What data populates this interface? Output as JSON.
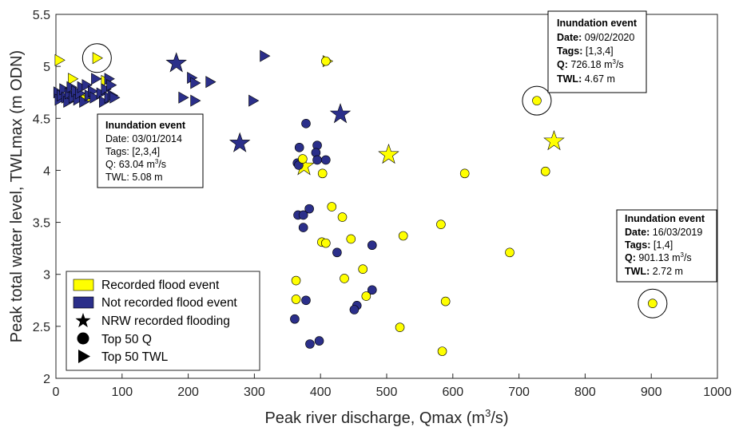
{
  "chart_data": {
    "type": "scatter",
    "xlabel_main": "Peak river discharge, Qmax (m",
    "xlabel_sup": "3",
    "xlabel_end": "/s)",
    "ylabel": "Peak total water level, TWLmax (m ODN)",
    "xlim": [
      0,
      1000
    ],
    "ylim": [
      2,
      5.5
    ],
    "x_ticks": [
      0,
      100,
      200,
      300,
      400,
      500,
      600,
      700,
      800,
      900,
      1000
    ],
    "y_ticks": [
      2,
      2.5,
      3,
      3.5,
      4,
      4.5,
      5,
      5.5
    ],
    "colors": {
      "recorded": "#ffff00",
      "not_recorded": "#2b2f8a",
      "edge": "#000000"
    },
    "legend": {
      "position": "bottom-left",
      "items": [
        {
          "label": "Recorded flood event",
          "marker": "swatch",
          "color": "#ffff00"
        },
        {
          "label": "Not recorded flood event",
          "marker": "swatch",
          "color": "#2b2f8a"
        },
        {
          "label": "NRW recorded flooding",
          "marker": "star",
          "color": "#000000"
        },
        {
          "label": "Top 50 Q",
          "marker": "circle",
          "color": "#000000"
        },
        {
          "label": "Top 50 TWL",
          "marker": "triangle",
          "color": "#000000"
        }
      ]
    },
    "points": [
      {
        "x": 5,
        "y": 5.06,
        "marker": "triangle",
        "color": "recorded"
      },
      {
        "x": 62,
        "y": 5.08,
        "marker": "triangle",
        "color": "recorded"
      },
      {
        "x": 25,
        "y": 4.88,
        "marker": "triangle",
        "color": "recorded"
      },
      {
        "x": 40,
        "y": 4.72,
        "marker": "triangle",
        "color": "recorded"
      },
      {
        "x": 75,
        "y": 4.86,
        "marker": "triangle",
        "color": "recorded"
      },
      {
        "x": 45,
        "y": 4.68,
        "marker": "triangle",
        "color": "recorded"
      },
      {
        "x": 3,
        "y": 4.75,
        "marker": "triangle",
        "color": "not_recorded"
      },
      {
        "x": 5,
        "y": 4.68,
        "marker": "triangle",
        "color": "not_recorded"
      },
      {
        "x": 8,
        "y": 4.72,
        "marker": "triangle",
        "color": "not_recorded"
      },
      {
        "x": 12,
        "y": 4.78,
        "marker": "triangle",
        "color": "not_recorded"
      },
      {
        "x": 15,
        "y": 4.7,
        "marker": "triangle",
        "color": "not_recorded"
      },
      {
        "x": 18,
        "y": 4.66,
        "marker": "triangle",
        "color": "not_recorded"
      },
      {
        "x": 20,
        "y": 4.74,
        "marker": "triangle",
        "color": "not_recorded"
      },
      {
        "x": 23,
        "y": 4.8,
        "marker": "triangle",
        "color": "not_recorded"
      },
      {
        "x": 26,
        "y": 4.7,
        "marker": "triangle",
        "color": "not_recorded"
      },
      {
        "x": 30,
        "y": 4.76,
        "marker": "triangle",
        "color": "not_recorded"
      },
      {
        "x": 33,
        "y": 4.68,
        "marker": "triangle",
        "color": "not_recorded"
      },
      {
        "x": 36,
        "y": 4.74,
        "marker": "triangle",
        "color": "not_recorded"
      },
      {
        "x": 39,
        "y": 4.8,
        "marker": "triangle",
        "color": "not_recorded"
      },
      {
        "x": 42,
        "y": 4.66,
        "marker": "triangle",
        "color": "not_recorded"
      },
      {
        "x": 46,
        "y": 4.82,
        "marker": "triangle",
        "color": "not_recorded"
      },
      {
        "x": 50,
        "y": 4.72,
        "marker": "triangle",
        "color": "not_recorded"
      },
      {
        "x": 55,
        "y": 4.76,
        "marker": "triangle",
        "color": "not_recorded"
      },
      {
        "x": 58,
        "y": 4.7,
        "marker": "triangle",
        "color": "not_recorded"
      },
      {
        "x": 68,
        "y": 4.74,
        "marker": "triangle",
        "color": "not_recorded"
      },
      {
        "x": 72,
        "y": 4.66,
        "marker": "triangle",
        "color": "not_recorded"
      },
      {
        "x": 75,
        "y": 4.78,
        "marker": "triangle",
        "color": "not_recorded"
      },
      {
        "x": 80,
        "y": 4.7,
        "marker": "triangle",
        "color": "not_recorded"
      },
      {
        "x": 85,
        "y": 4.72,
        "marker": "triangle",
        "color": "not_recorded"
      },
      {
        "x": 88,
        "y": 4.7,
        "marker": "triangle",
        "color": "not_recorded"
      },
      {
        "x": 60,
        "y": 4.88,
        "marker": "triangle",
        "color": "not_recorded"
      },
      {
        "x": 80,
        "y": 4.88,
        "marker": "triangle",
        "color": "not_recorded"
      },
      {
        "x": 83,
        "y": 4.82,
        "marker": "triangle",
        "color": "not_recorded"
      },
      {
        "x": 205,
        "y": 4.89,
        "marker": "triangle",
        "color": "not_recorded"
      },
      {
        "x": 210,
        "y": 4.84,
        "marker": "triangle",
        "color": "not_recorded"
      },
      {
        "x": 233,
        "y": 4.85,
        "marker": "triangle",
        "color": "not_recorded"
      },
      {
        "x": 192,
        "y": 4.7,
        "marker": "triangle",
        "color": "not_recorded"
      },
      {
        "x": 210,
        "y": 4.67,
        "marker": "triangle",
        "color": "not_recorded"
      },
      {
        "x": 298,
        "y": 4.67,
        "marker": "triangle",
        "color": "not_recorded"
      },
      {
        "x": 315,
        "y": 5.1,
        "marker": "triangle",
        "color": "not_recorded"
      },
      {
        "x": 410,
        "y": 5.05,
        "marker": "triangle",
        "color": "recorded"
      },
      {
        "x": 182,
        "y": 5.03,
        "marker": "star",
        "color": "not_recorded"
      },
      {
        "x": 430,
        "y": 4.54,
        "marker": "star",
        "color": "not_recorded"
      },
      {
        "x": 278,
        "y": 4.26,
        "marker": "star",
        "color": "not_recorded"
      },
      {
        "x": 375,
        "y": 4.04,
        "marker": "star",
        "color": "recorded"
      },
      {
        "x": 503,
        "y": 4.15,
        "marker": "star",
        "color": "recorded"
      },
      {
        "x": 753,
        "y": 4.28,
        "marker": "star",
        "color": "recorded"
      },
      {
        "x": 408,
        "y": 5.05,
        "marker": "circle",
        "color": "recorded"
      },
      {
        "x": 727,
        "y": 4.67,
        "marker": "circle",
        "color": "recorded"
      },
      {
        "x": 378,
        "y": 4.45,
        "marker": "circle",
        "color": "not_recorded"
      },
      {
        "x": 368,
        "y": 4.22,
        "marker": "circle",
        "color": "not_recorded"
      },
      {
        "x": 395,
        "y": 4.24,
        "marker": "circle",
        "color": "not_recorded"
      },
      {
        "x": 393,
        "y": 4.17,
        "marker": "circle",
        "color": "not_recorded"
      },
      {
        "x": 395,
        "y": 4.1,
        "marker": "circle",
        "color": "not_recorded"
      },
      {
        "x": 408,
        "y": 4.1,
        "marker": "circle",
        "color": "not_recorded"
      },
      {
        "x": 365,
        "y": 4.07,
        "marker": "circle",
        "color": "not_recorded"
      },
      {
        "x": 367,
        "y": 4.05,
        "marker": "circle",
        "color": "not_recorded"
      },
      {
        "x": 373,
        "y": 4.11,
        "marker": "circle",
        "color": "recorded"
      },
      {
        "x": 403,
        "y": 3.97,
        "marker": "circle",
        "color": "recorded"
      },
      {
        "x": 618,
        "y": 3.97,
        "marker": "circle",
        "color": "recorded"
      },
      {
        "x": 740,
        "y": 3.99,
        "marker": "circle",
        "color": "recorded"
      },
      {
        "x": 417,
        "y": 3.65,
        "marker": "circle",
        "color": "recorded"
      },
      {
        "x": 433,
        "y": 3.55,
        "marker": "circle",
        "color": "recorded"
      },
      {
        "x": 383,
        "y": 3.63,
        "marker": "circle",
        "color": "not_recorded"
      },
      {
        "x": 366,
        "y": 3.57,
        "marker": "circle",
        "color": "not_recorded"
      },
      {
        "x": 374,
        "y": 3.57,
        "marker": "circle",
        "color": "not_recorded"
      },
      {
        "x": 374,
        "y": 3.45,
        "marker": "circle",
        "color": "not_recorded"
      },
      {
        "x": 582,
        "y": 3.48,
        "marker": "circle",
        "color": "recorded"
      },
      {
        "x": 525,
        "y": 3.37,
        "marker": "circle",
        "color": "recorded"
      },
      {
        "x": 446,
        "y": 3.34,
        "marker": "circle",
        "color": "recorded"
      },
      {
        "x": 402,
        "y": 3.31,
        "marker": "circle",
        "color": "recorded"
      },
      {
        "x": 408,
        "y": 3.3,
        "marker": "circle",
        "color": "recorded"
      },
      {
        "x": 478,
        "y": 3.28,
        "marker": "circle",
        "color": "not_recorded"
      },
      {
        "x": 425,
        "y": 3.21,
        "marker": "circle",
        "color": "not_recorded"
      },
      {
        "x": 686,
        "y": 3.21,
        "marker": "circle",
        "color": "recorded"
      },
      {
        "x": 464,
        "y": 3.05,
        "marker": "circle",
        "color": "recorded"
      },
      {
        "x": 436,
        "y": 2.96,
        "marker": "circle",
        "color": "recorded"
      },
      {
        "x": 363,
        "y": 2.94,
        "marker": "circle",
        "color": "recorded"
      },
      {
        "x": 478,
        "y": 2.85,
        "marker": "circle",
        "color": "not_recorded"
      },
      {
        "x": 469,
        "y": 2.79,
        "marker": "circle",
        "color": "recorded"
      },
      {
        "x": 363,
        "y": 2.76,
        "marker": "circle",
        "color": "recorded"
      },
      {
        "x": 378,
        "y": 2.75,
        "marker": "circle",
        "color": "not_recorded"
      },
      {
        "x": 589,
        "y": 2.74,
        "marker": "circle",
        "color": "recorded"
      },
      {
        "x": 902,
        "y": 2.72,
        "marker": "circle",
        "color": "recorded"
      },
      {
        "x": 455,
        "y": 2.7,
        "marker": "circle",
        "color": "not_recorded"
      },
      {
        "x": 451,
        "y": 2.66,
        "marker": "circle",
        "color": "not_recorded"
      },
      {
        "x": 361,
        "y": 2.57,
        "marker": "circle",
        "color": "not_recorded"
      },
      {
        "x": 520,
        "y": 2.49,
        "marker": "circle",
        "color": "recorded"
      },
      {
        "x": 398,
        "y": 2.36,
        "marker": "circle",
        "color": "not_recorded"
      },
      {
        "x": 384,
        "y": 2.33,
        "marker": "circle",
        "color": "not_recorded"
      },
      {
        "x": 584,
        "y": 2.26,
        "marker": "circle",
        "color": "recorded"
      }
    ],
    "highlights": [
      {
        "x": 62,
        "y": 5.08
      },
      {
        "x": 727,
        "y": 4.67
      },
      {
        "x": 902,
        "y": 2.72
      }
    ],
    "annotations": [
      {
        "title": "Inundation event",
        "bold_labels": false,
        "date_label": "Date:",
        "date": "03/01/2014",
        "tags_label": "Tags:",
        "tags": "[2,3,4]",
        "q_label": "Q:",
        "q": "63.04 m",
        "q_sup": "3",
        "q_unit": "/s",
        "twl_label": "TWL:",
        "twl": "5.08 m"
      },
      {
        "title": "Inundation event",
        "bold_labels": true,
        "date_label": "Date:",
        "date": "09/02/2020",
        "tags_label": "Tags:",
        "tags": "[1,3,4]",
        "q_label": "Q:",
        "q": "726.18 m",
        "q_sup": "3",
        "q_unit": "/s",
        "twl_label": "TWL:",
        "twl": "4.67 m"
      },
      {
        "title": "Inundation event",
        "bold_labels": true,
        "date_label": "Date:",
        "date": "16/03/2019",
        "tags_label": "Tags:",
        "tags": "[1,4]",
        "q_label": "Q:",
        "q": "901.13 m",
        "q_sup": "3",
        "q_unit": "/s",
        "twl_label": "TWL:",
        "twl": "2.72 m"
      }
    ]
  }
}
